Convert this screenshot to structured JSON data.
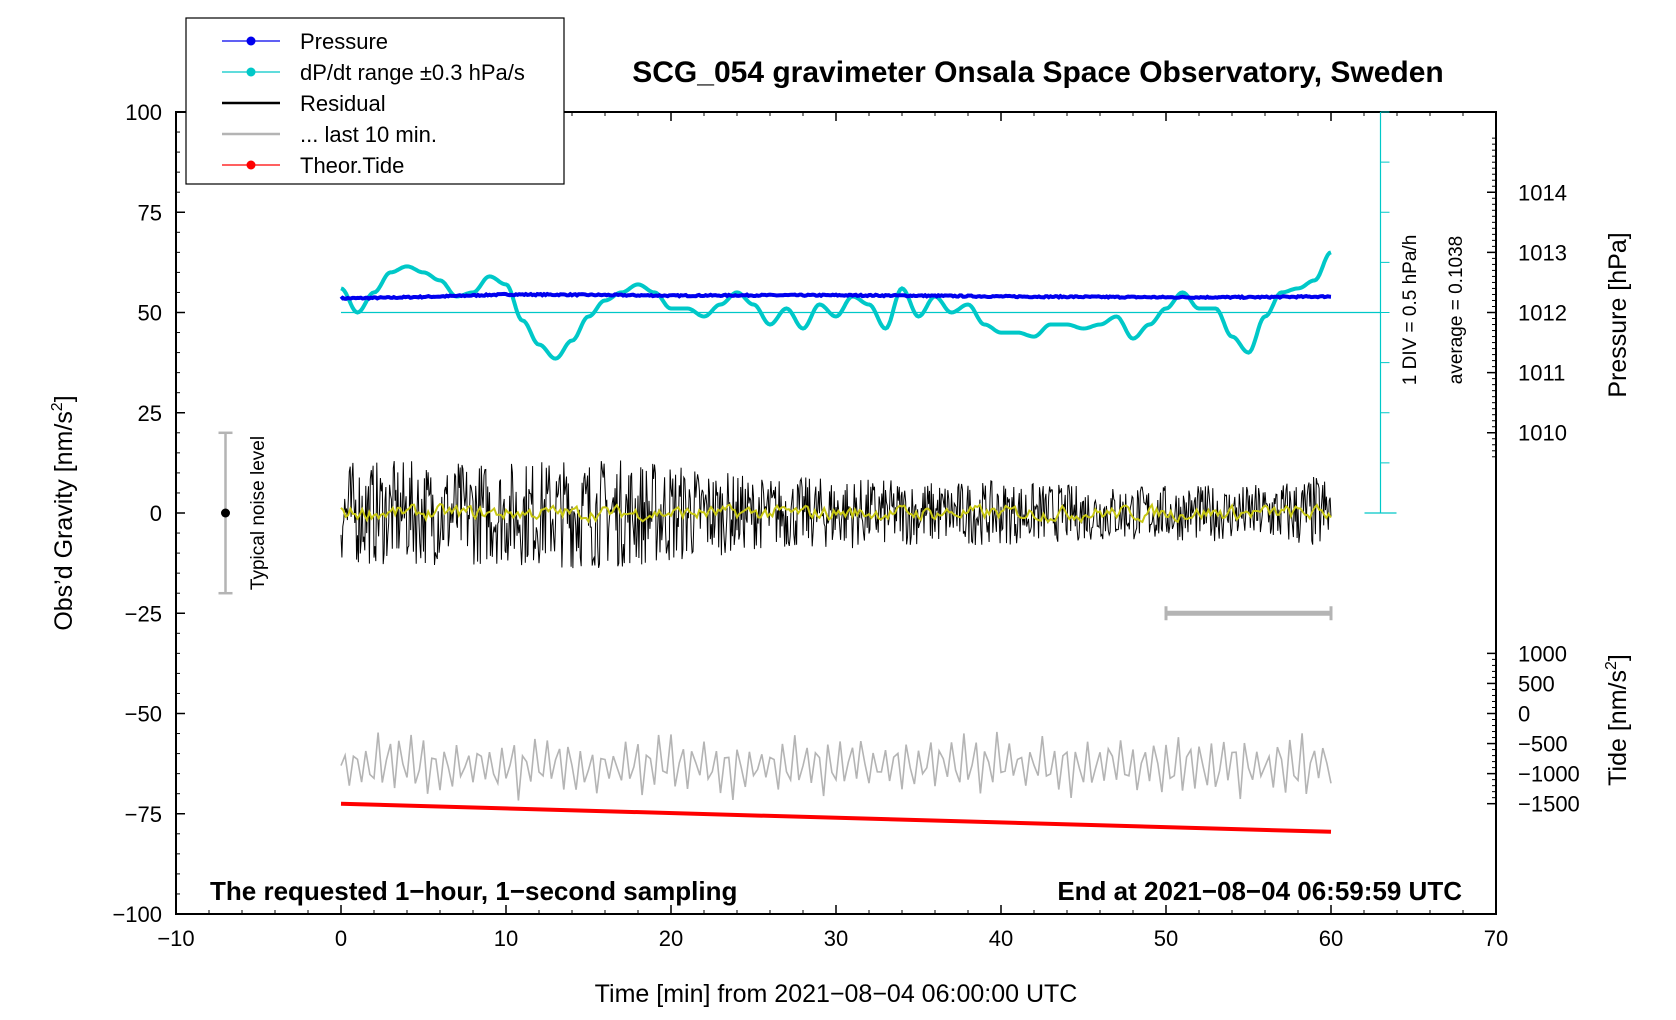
{
  "chart_data": {
    "type": "line",
    "title": "SCG_054 gravimeter Onsala Space Observatory, Sweden",
    "xlabel": "Time [min] from 2021−08−04 06:00:00 UTC",
    "ylabel_left": "Obs’d Gravity [nm/s",
    "ylabel_right_pressure": "Pressure [hPa]",
    "ylabel_right_tide": "Tide [nm/s",
    "sup2": "2",
    "xlim": [
      -10,
      70
    ],
    "ylim": [
      -100,
      100
    ],
    "x_ticks": [
      "−10",
      "0",
      "10",
      "20",
      "30",
      "40",
      "50",
      "60",
      "70"
    ],
    "y_ticks": [
      "−100",
      "−75",
      "−50",
      "−25",
      "0",
      "25",
      "50",
      "75",
      "100"
    ],
    "pressure_ticks": [
      "1010",
      "1011",
      "1012",
      "1013",
      "1014"
    ],
    "pressure_tick_values": [
      1010,
      1011,
      1012,
      1013,
      1014
    ],
    "pressure_scale": {
      "ref_value": 1012,
      "ref_gravity": 50,
      "units_per_gravity": 0.0667
    },
    "tide_ticks": [
      "1000",
      "500",
      "0",
      "−500",
      "−1000",
      "−1500"
    ],
    "tide_tick_values": [
      1000,
      500,
      0,
      -500,
      -1000,
      -1500
    ],
    "tide_scale": {
      "ref_value": 0,
      "ref_gravity": -50,
      "units_per_gravity": 66.7
    },
    "legend": {
      "position": "top-left",
      "entries": [
        {
          "label": "Pressure",
          "color": "#0000ee",
          "marker": true
        },
        {
          "label": "dP/dt range ±0.3 hPa/s",
          "color": "#00c8c8",
          "marker": true
        },
        {
          "label": "Residual",
          "color": "#000000",
          "marker": false
        },
        {
          "label": "... last 10 min.",
          "color": "#b4b4b4",
          "marker": false
        },
        {
          "label": "Theor.Tide",
          "color": "#ff0000",
          "marker": true
        }
      ]
    },
    "annotations": {
      "noise_label": "Typical noise level",
      "noise_center": 0,
      "noise_halfwidth": 20,
      "noise_x": -7,
      "div_label": "1 DIV = 0.5 hPa/h",
      "average_label": "average = 0.1038",
      "bottom_left": "The requested 1−hour, 1−second sampling",
      "bottom_right": "End at 2021−08−04 06:59:59 UTC",
      "last10_bar": {
        "x_start": 50,
        "x_end": 60,
        "y": -25
      },
      "dpdt_center": 50,
      "dpdt_scale_x": 63,
      "dpdt_scale_top": 100,
      "dpdt_scale_bottom": 0,
      "dpdt_scale_div": 5
    },
    "series": [
      {
        "name": "Pressure",
        "color": "#0000ee",
        "x": [
          0,
          3,
          6,
          10,
          15,
          20,
          25,
          30,
          35,
          40,
          45,
          50,
          55,
          60
        ],
        "values": [
          53.5,
          53.7,
          54.0,
          54.5,
          54.4,
          54.2,
          54.3,
          54.3,
          54.2,
          54.0,
          53.9,
          53.8,
          53.8,
          54.0
        ]
      },
      {
        "name": "dP/dt range ±0.3 hPa/s",
        "color": "#00c8c8",
        "x": [
          0,
          1,
          2,
          3,
          4,
          5,
          6,
          7,
          8,
          9,
          10,
          11,
          12,
          13,
          14,
          15,
          16,
          17,
          18,
          19,
          20,
          21,
          22,
          23,
          24,
          25,
          26,
          27,
          28,
          29,
          30,
          31,
          32,
          33,
          34,
          35,
          36,
          37,
          38,
          39,
          40,
          41,
          42,
          43,
          44,
          45,
          46,
          47,
          48,
          49,
          50,
          51,
          52,
          53,
          54,
          55,
          56,
          57,
          58,
          59,
          60
        ],
        "values": [
          56,
          50,
          55,
          60,
          61.5,
          60,
          58,
          54,
          55,
          59,
          57,
          48,
          42,
          38.5,
          43,
          49,
          53,
          55,
          57,
          55,
          51,
          51,
          49,
          52,
          55,
          52,
          47,
          51,
          46,
          52,
          49,
          54,
          52,
          46,
          56,
          49,
          54,
          50,
          52,
          47,
          45,
          45,
          44,
          47,
          47,
          46,
          47,
          49,
          43.5,
          47,
          51,
          55,
          51,
          51,
          44,
          40,
          49,
          55,
          56,
          58,
          65
        ]
      },
      {
        "name": "Residual",
        "color": "#000000",
        "x_range": [
          0,
          60
        ],
        "amplitude": 14,
        "samples": 1080,
        "envelope_x": [
          0,
          10,
          15,
          20,
          25,
          30,
          35,
          40,
          45,
          50,
          55,
          60
        ],
        "envelope": [
          13,
          13,
          14,
          13,
          9,
          9,
          8,
          8,
          7,
          7,
          7,
          10
        ]
      },
      {
        "name": "Residual smoothed",
        "color": "#c8c814",
        "x_range": [
          0,
          60
        ],
        "amplitude": 3,
        "samples": 420
      },
      {
        "name": "... last 10 min.",
        "color": "#b4b4b4",
        "x_range": [
          0,
          60
        ],
        "center": -63,
        "amplitude": 8,
        "samples": 240
      },
      {
        "name": "Theor.Tide",
        "color": "#ff0000",
        "x": [
          0,
          60
        ],
        "values": [
          -72.5,
          -79.5
        ]
      }
    ]
  }
}
